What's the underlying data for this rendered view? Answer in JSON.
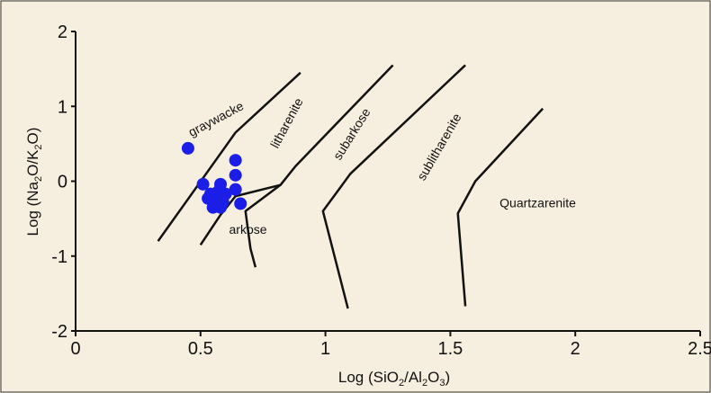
{
  "chart_data": {
    "type": "scatter",
    "xlabel": "Log (SiO2/Al2O3)",
    "ylabel": "Log (Na2O/K2O)",
    "xlim": [
      0,
      2.5
    ],
    "ylim": [
      -2,
      2
    ],
    "x_ticks": [
      "0",
      "0.5",
      "1",
      "1.5",
      "2",
      "2.5"
    ],
    "y_ticks": [
      "2",
      "1",
      "0",
      "-1",
      "-2"
    ],
    "grid": false,
    "legend": "none",
    "marker_color": "#1a1ee6",
    "line_color": "#111111",
    "boundaries": [
      {
        "points": [
          [
            0.33,
            -0.8
          ],
          [
            0.64,
            0.65
          ],
          [
            0.9,
            1.45
          ]
        ]
      },
      {
        "points": [
          [
            0.5,
            -0.85
          ],
          [
            0.58,
            -0.45
          ],
          [
            0.64,
            -0.2
          ],
          [
            0.82,
            -0.05
          ],
          [
            0.88,
            0.2
          ],
          [
            1.27,
            1.55
          ]
        ]
      },
      {
        "points": [
          [
            0.72,
            -1.15
          ],
          [
            0.7,
            -0.9
          ],
          [
            0.68,
            -0.4
          ],
          [
            0.82,
            -0.05
          ]
        ]
      },
      {
        "points": [
          [
            1.09,
            -1.7
          ],
          [
            0.99,
            -0.4
          ],
          [
            1.1,
            0.1
          ],
          [
            1.56,
            1.55
          ]
        ]
      },
      {
        "points": [
          [
            1.56,
            -1.67
          ],
          [
            1.53,
            -0.43
          ],
          [
            1.6,
            0.0
          ],
          [
            1.87,
            0.97
          ]
        ]
      }
    ],
    "fields": [
      {
        "name": "graywacke",
        "x": 0.57,
        "y": 0.78,
        "angle": -28
      },
      {
        "name": "litharenite",
        "x": 0.86,
        "y": 0.75,
        "angle": -62
      },
      {
        "name": "subarkose",
        "x": 1.12,
        "y": 0.6,
        "angle": -58
      },
      {
        "name": "sublitharenite",
        "x": 1.47,
        "y": 0.43,
        "angle": -60
      },
      {
        "name": "Quartzarenite",
        "x": 1.85,
        "y": -0.35,
        "angle": 0
      },
      {
        "name": "arkose",
        "x": 0.69,
        "y": -0.7,
        "angle": 0
      }
    ],
    "points": [
      {
        "x": 0.45,
        "y": 0.44
      },
      {
        "x": 0.64,
        "y": 0.28
      },
      {
        "x": 0.64,
        "y": 0.08
      },
      {
        "x": 0.51,
        "y": -0.04
      },
      {
        "x": 0.58,
        "y": -0.04
      },
      {
        "x": 0.64,
        "y": -0.11
      },
      {
        "x": 0.57,
        "y": -0.14
      },
      {
        "x": 0.54,
        "y": -0.17
      },
      {
        "x": 0.6,
        "y": -0.17
      },
      {
        "x": 0.53,
        "y": -0.23
      },
      {
        "x": 0.56,
        "y": -0.27
      },
      {
        "x": 0.59,
        "y": -0.28
      },
      {
        "x": 0.66,
        "y": -0.3
      },
      {
        "x": 0.55,
        "y": -0.35
      },
      {
        "x": 0.58,
        "y": -0.35
      }
    ]
  }
}
